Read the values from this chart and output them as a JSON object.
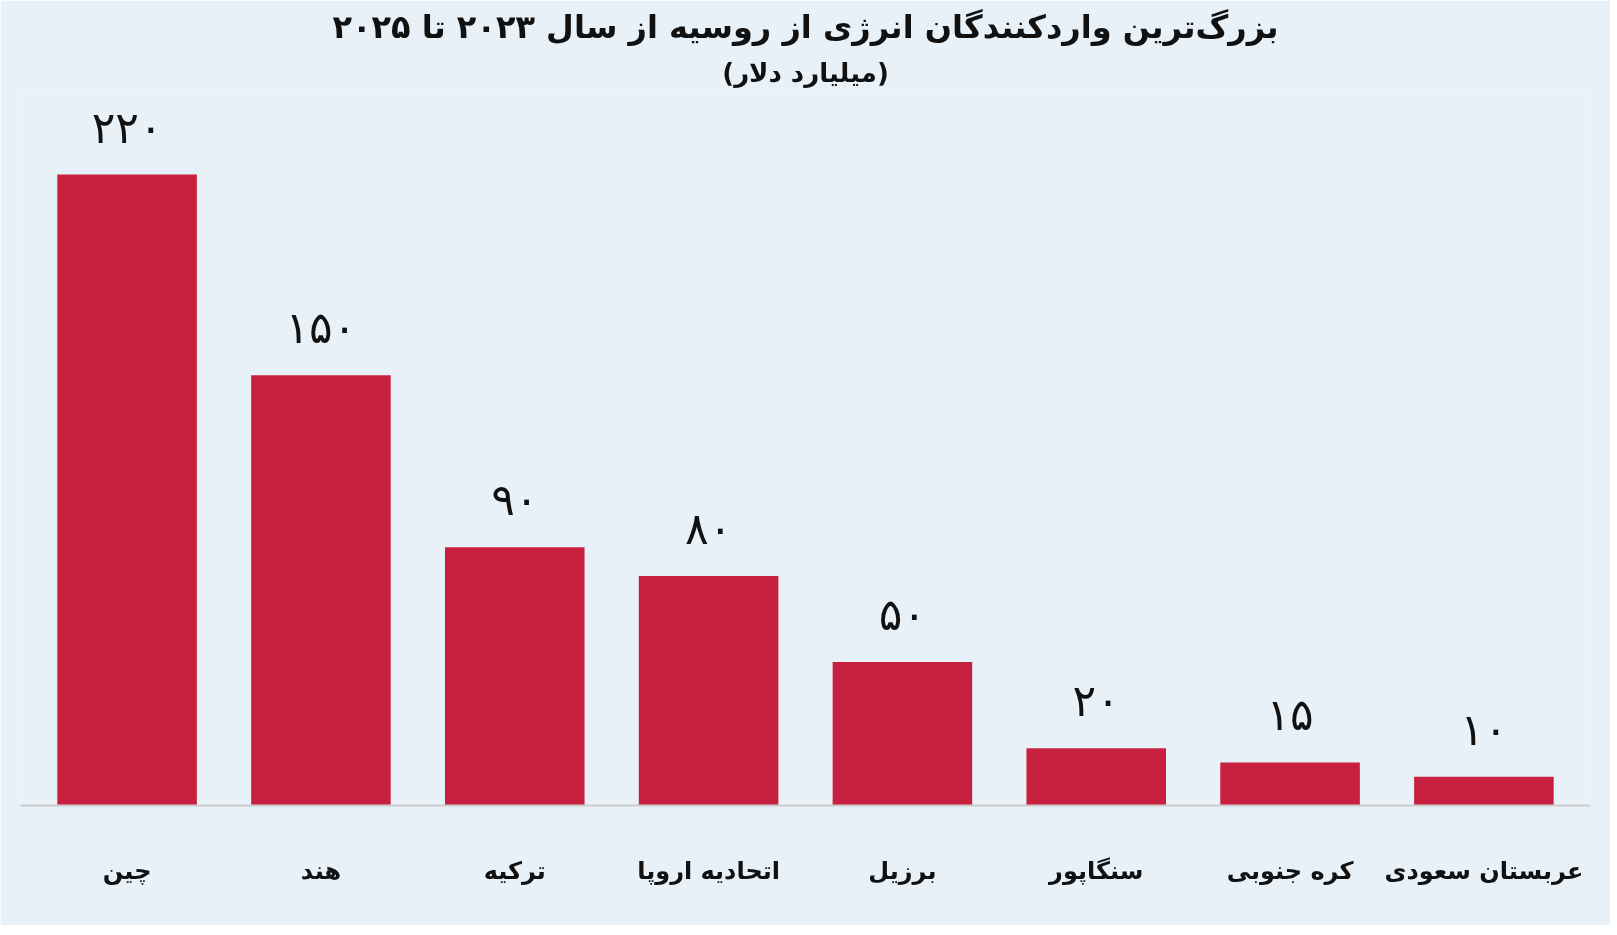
{
  "chart_data": {
    "type": "bar",
    "title": "بزرگ‌ترین واردکنندگان انرژی از روسیه از سال ۲۰۲۳ تا ۲۰۲۵",
    "subtitle": "(میلیارد دلار)",
    "categories": [
      "چین",
      "هند",
      "ترکیه",
      "اتحادیه اروپا",
      "برزیل",
      "سنگاپور",
      "کره جنوبی",
      "عربستان سعودی"
    ],
    "values": [
      220,
      150,
      90,
      80,
      50,
      20,
      15,
      10
    ],
    "value_labels": [
      "۲۲۰",
      "۱۵۰",
      "۹۰",
      "۸۰",
      "۵۰",
      "۲۰",
      "۱۵",
      "۱۰"
    ],
    "color": "#c8203f",
    "grid": false
  }
}
